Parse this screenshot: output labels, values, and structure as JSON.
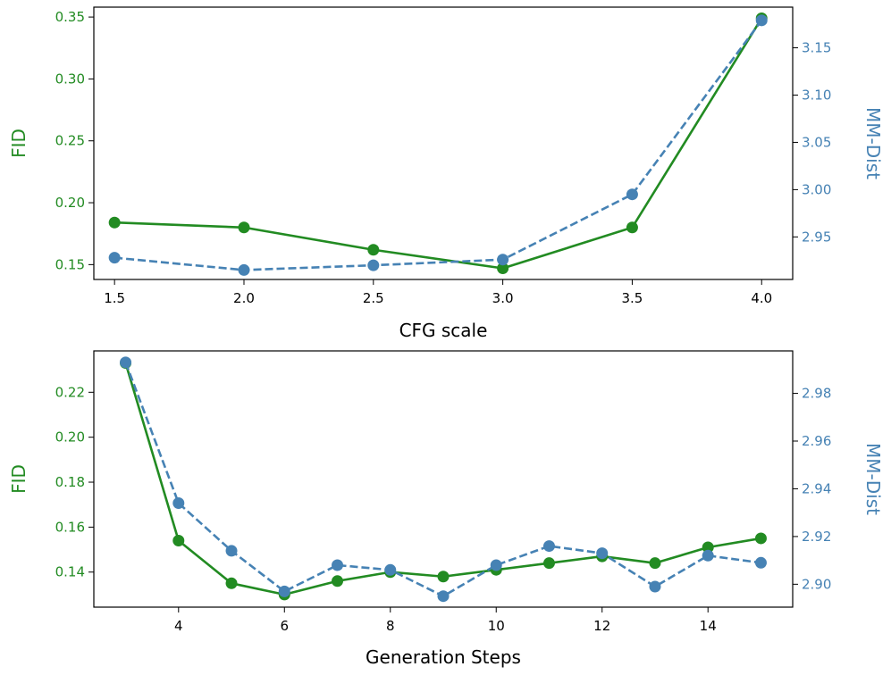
{
  "chart_data": [
    {
      "type": "line",
      "xlabel": "CFG scale",
      "ylabel_left": "FID",
      "ylabel_right": "MM-Dist",
      "x": [
        1.5,
        2.0,
        2.5,
        3.0,
        3.5,
        4.0
      ],
      "xlim": [
        1.42,
        4.12
      ],
      "xticks": [
        1.5,
        2.0,
        2.5,
        3.0,
        3.5,
        4.0
      ],
      "xtick_labels": [
        "1.5",
        "2.0",
        "2.5",
        "3.0",
        "3.5",
        "4.0"
      ],
      "ylim_left": [
        0.138,
        0.358
      ],
      "yticks_left": [
        0.15,
        0.2,
        0.25,
        0.3,
        0.35
      ],
      "ytick_labels_left": [
        "0.15",
        "0.20",
        "0.25",
        "0.30",
        "0.35"
      ],
      "ylim_right": [
        2.905,
        3.193
      ],
      "yticks_right": [
        2.95,
        3.0,
        3.05,
        3.1,
        3.15
      ],
      "ytick_labels_right": [
        "2.95",
        "3.00",
        "3.05",
        "3.10",
        "3.15"
      ],
      "series": [
        {
          "name": "FID",
          "axis": "left",
          "color": "#228b22",
          "dashed": false,
          "values": [
            0.184,
            0.18,
            0.162,
            0.147,
            0.18,
            0.349
          ]
        },
        {
          "name": "MM-Dist",
          "axis": "right",
          "color": "#4682b4",
          "dashed": true,
          "values": [
            2.928,
            2.915,
            2.92,
            2.926,
            2.995,
            3.179
          ]
        }
      ]
    },
    {
      "type": "line",
      "xlabel": "Generation Steps",
      "ylabel_left": "FID",
      "ylabel_right": "MM-Dist",
      "x": [
        3,
        4,
        5,
        6,
        7,
        8,
        9,
        10,
        11,
        12,
        13,
        14,
        15
      ],
      "xlim": [
        2.4,
        15.6
      ],
      "xticks": [
        4,
        6,
        8,
        10,
        12,
        14
      ],
      "xtick_labels": [
        "4",
        "6",
        "8",
        "10",
        "12",
        "14"
      ],
      "ylim_left": [
        0.1244,
        0.2384
      ],
      "yticks_left": [
        0.14,
        0.16,
        0.18,
        0.2,
        0.22
      ],
      "ytick_labels_left": [
        "0.14",
        "0.16",
        "0.18",
        "0.20",
        "0.22"
      ],
      "ylim_right": [
        2.8904,
        2.9978
      ],
      "yticks_right": [
        2.9,
        2.92,
        2.94,
        2.96,
        2.98
      ],
      "ytick_labels_right": [
        "2.90",
        "2.92",
        "2.94",
        "2.96",
        "2.98"
      ],
      "series": [
        {
          "name": "FID",
          "axis": "left",
          "color": "#228b22",
          "dashed": false,
          "values": [
            0.233,
            0.154,
            0.135,
            0.13,
            0.136,
            0.14,
            0.138,
            0.141,
            0.144,
            0.147,
            0.144,
            0.151,
            0.155
          ]
        },
        {
          "name": "MM-Dist",
          "axis": "right",
          "color": "#4682b4",
          "dashed": true,
          "values": [
            2.993,
            2.934,
            2.914,
            2.897,
            2.908,
            2.906,
            2.895,
            2.908,
            2.916,
            2.913,
            2.899,
            2.912,
            2.909
          ]
        }
      ]
    }
  ]
}
